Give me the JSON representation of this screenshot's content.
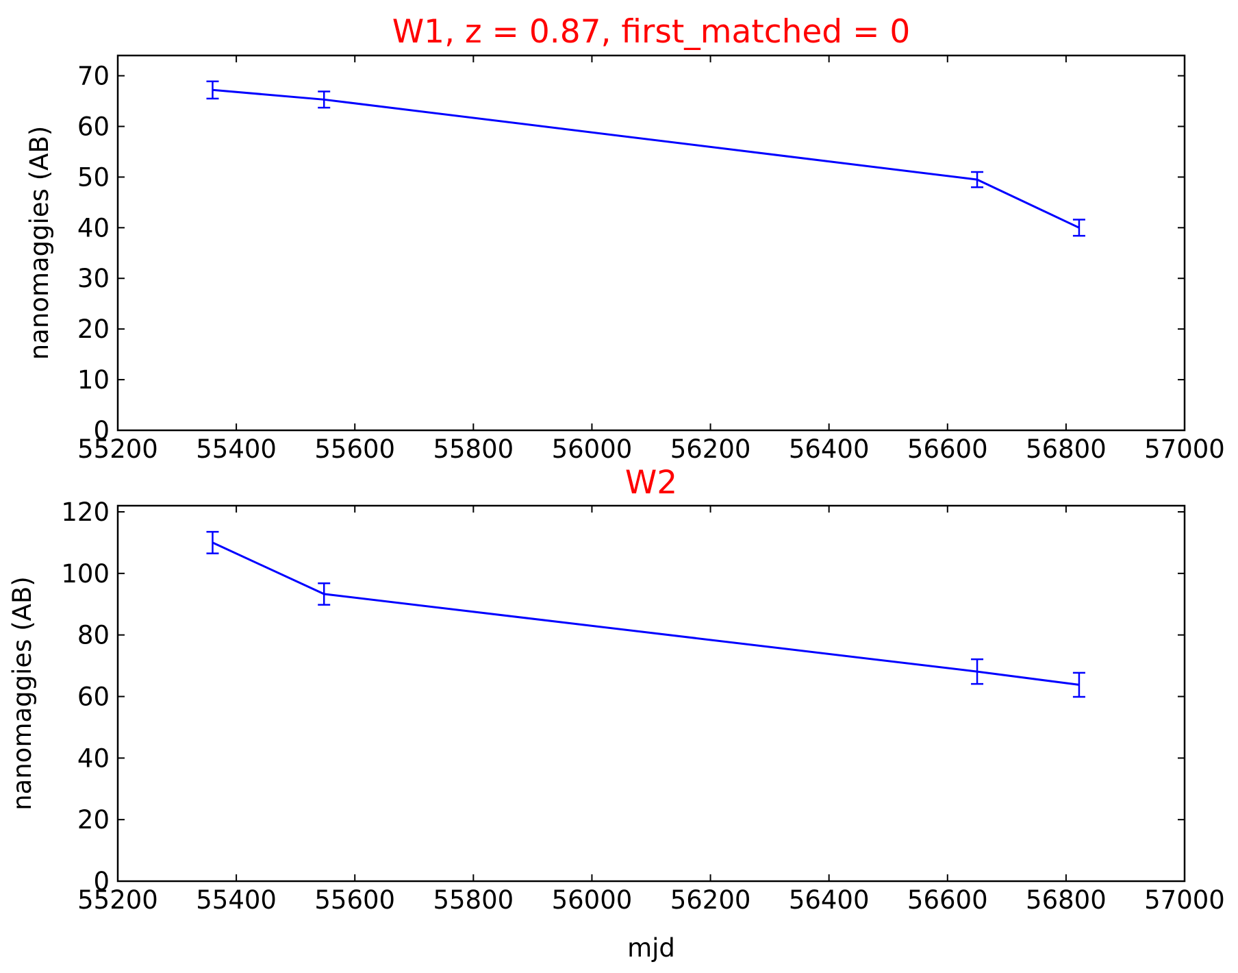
{
  "chart_data": [
    {
      "type": "line",
      "title": "W1, z = 0.87, first_matched = 0",
      "xlabel": "",
      "ylabel": "nanomaggies (AB)",
      "xlim": [
        55200,
        57000
      ],
      "ylim": [
        0,
        74
      ],
      "xticks": [
        55200,
        55400,
        55600,
        55800,
        56000,
        56200,
        56400,
        56600,
        56800,
        57000
      ],
      "yticks": [
        0,
        10,
        20,
        30,
        40,
        50,
        60,
        70
      ],
      "grid": false,
      "color": "#0000ff",
      "series": [
        {
          "x": [
            55360,
            55548,
            56650,
            56822
          ],
          "y": [
            67.2,
            65.3,
            49.5,
            40.0
          ],
          "yerr": [
            1.7,
            1.6,
            1.5,
            1.6
          ]
        }
      ]
    },
    {
      "type": "line",
      "title": "W2",
      "xlabel": "mjd",
      "ylabel": "nanomaggies (AB)",
      "xlim": [
        55200,
        57000
      ],
      "ylim": [
        0,
        122
      ],
      "xticks": [
        55200,
        55400,
        55600,
        55800,
        56000,
        56200,
        56400,
        56600,
        56800,
        57000
      ],
      "yticks": [
        0,
        20,
        40,
        60,
        80,
        100,
        120
      ],
      "grid": false,
      "color": "#0000ff",
      "series": [
        {
          "x": [
            55360,
            55548,
            56650,
            56822
          ],
          "y": [
            110.0,
            93.3,
            68.1,
            63.8
          ],
          "yerr": [
            3.5,
            3.5,
            4.0,
            3.9
          ]
        }
      ]
    }
  ]
}
